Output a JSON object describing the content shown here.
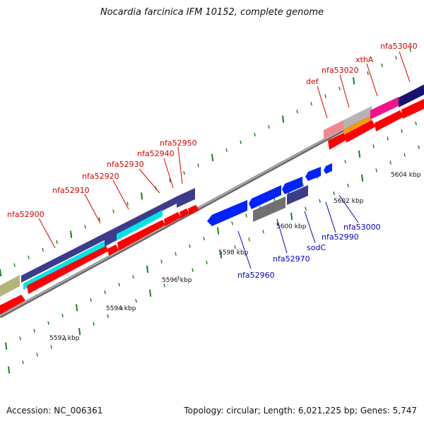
{
  "title": "Nocardia farcinica IFM 10152, complete genome",
  "footer": {
    "accession": "Accession: NC_006361",
    "summary": "Topology: circular; Length: 6,021,225 bp; Genes: 5,747"
  },
  "colors": {
    "backbone": "#8c8c8c",
    "tick": "#1e7d1e",
    "forward_label": "#d40000",
    "reverse_label": "#0000cc",
    "cds_forward": "#ff0000",
    "cds_reverse": "#0022ff",
    "gene_dark_blue": "#3c3c8c",
    "gene_cyan": "#00e5e5",
    "gene_navy": "#14146e",
    "gene_pink": "#f080a0",
    "gene_magenta": "#f0148c",
    "gene_orange": "#ff9a00",
    "gene_gray": "#707070",
    "gene_olive": "#b4b478"
  },
  "scale_labels": [
    {
      "kbp": 5592,
      "label": "5592 kbp"
    },
    {
      "kbp": 5594,
      "label": "5594 kbp"
    },
    {
      "kbp": 5596,
      "label": "5596 kbp"
    },
    {
      "kbp": 5598,
      "label": "5598 kbp"
    },
    {
      "kbp": 5600,
      "label": "5600 kbp"
    },
    {
      "kbp": 5602,
      "label": "5602 kbp"
    },
    {
      "kbp": 5604,
      "label": "5604 kbp"
    }
  ],
  "forward_genes": [
    "nfa52900",
    "nfa52910",
    "nfa52920",
    "nfa52930",
    "nfa52940",
    "nfa52950",
    "def",
    "nfa53020",
    "xthA",
    "nfa53040"
  ],
  "reverse_genes": [
    "nfa52960",
    "nfa52970",
    "sodC",
    "nfa52990",
    "nfa53000"
  ]
}
